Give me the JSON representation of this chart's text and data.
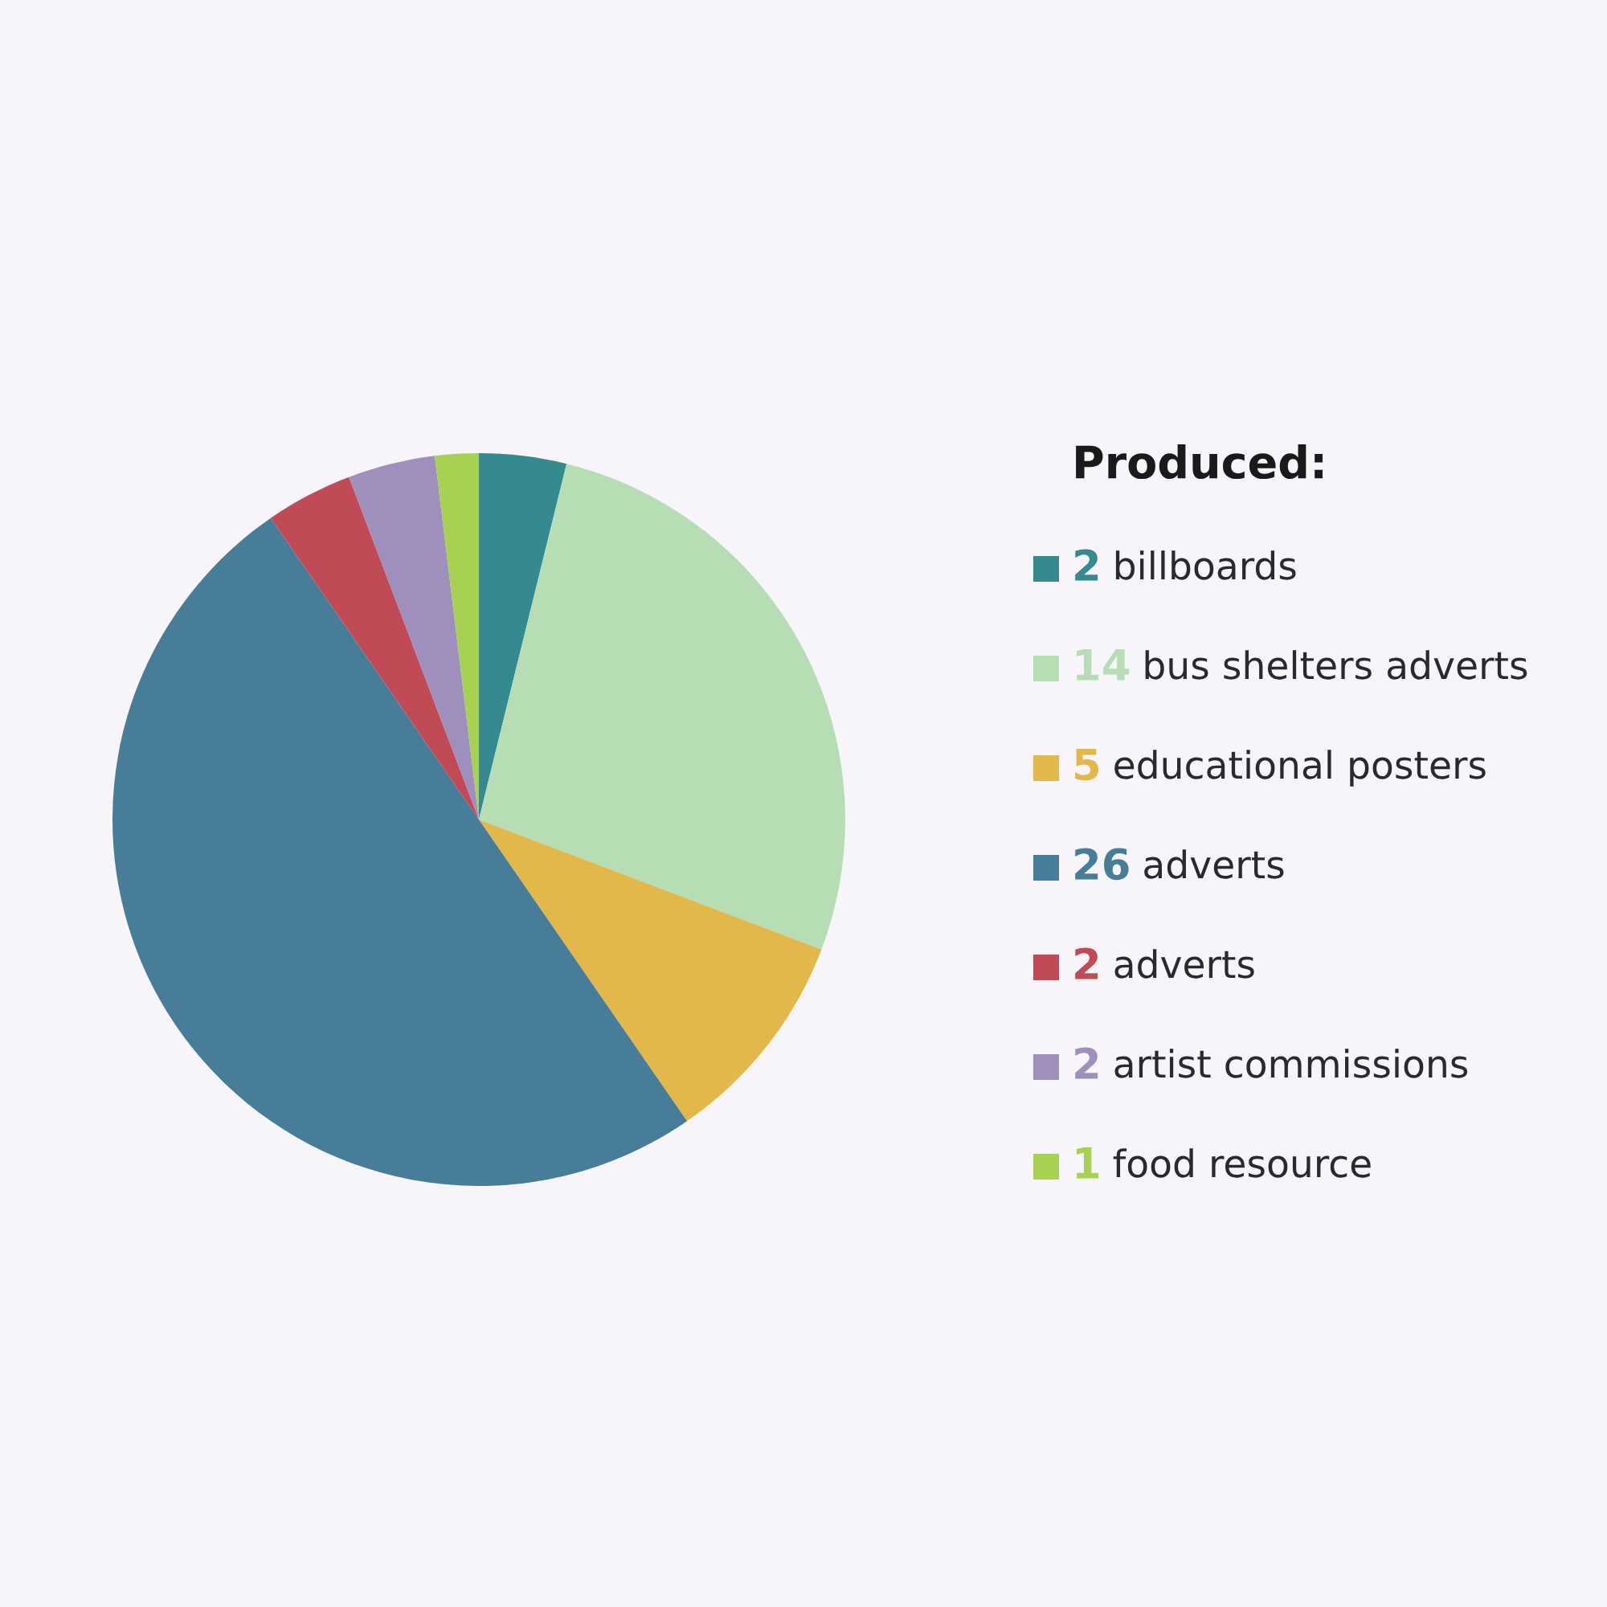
{
  "chart_data": {
    "type": "pie",
    "legend_title": "Produced:",
    "categories": [
      "billboards",
      "bus shelters adverts",
      "educational posters",
      "adverts",
      "adverts",
      "artist commissions",
      "food resource"
    ],
    "values": [
      2,
      14,
      5,
      26,
      2,
      2,
      1
    ],
    "colors": [
      "#358a8f",
      "#b6ddb3",
      "#e2b84a",
      "#477d98",
      "#c04b57",
      "#9f8fbd",
      "#a6d151"
    ],
    "data_labels": true,
    "legend": "right"
  }
}
